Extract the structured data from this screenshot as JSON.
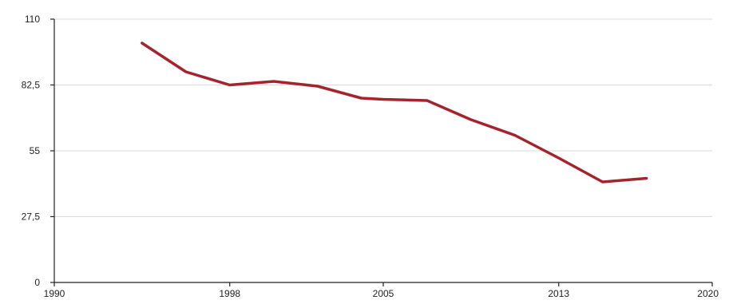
{
  "chart_data": {
    "type": "line",
    "title": "",
    "xlabel": "",
    "ylabel": "",
    "xlim": [
      1990,
      2020
    ],
    "ylim": [
      0,
      110
    ],
    "x_ticks": [
      1990,
      1998,
      2005,
      2013,
      2020
    ],
    "x_tick_labels": [
      "1990",
      "1998",
      "2005",
      "2013",
      "2020"
    ],
    "y_ticks": [
      0,
      27.5,
      55,
      82.5,
      110
    ],
    "y_tick_labels": [
      "0",
      "27,5",
      "55",
      "82,5",
      "110"
    ],
    "grid": "horizontal",
    "legend": "none",
    "series": [
      {
        "color": "#a3242d",
        "x": [
          1994,
          1996,
          1998,
          2000,
          2002,
          2004,
          2005,
          2007,
          2009,
          2011,
          2013,
          2015,
          2017
        ],
        "y": [
          100,
          88,
          82.5,
          84,
          82,
          77,
          76.5,
          76,
          68,
          61.5,
          52,
          42,
          43.5
        ]
      }
    ]
  }
}
